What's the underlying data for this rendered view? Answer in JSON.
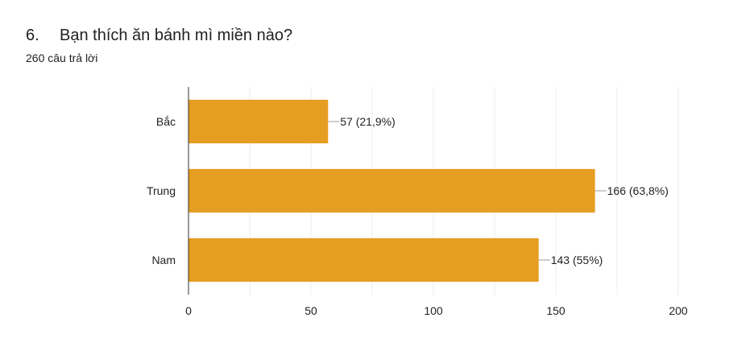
{
  "question": {
    "number": "6.",
    "title": "Bạn thích ăn bánh mì miền nào?",
    "response_count": "260 câu trả lời"
  },
  "colors": {
    "bar": "#e69e22",
    "grid": "#ececec",
    "axis": "#333333",
    "leader": "#9e9e9e",
    "text": "#222222"
  },
  "chart_data": {
    "type": "bar",
    "orientation": "horizontal",
    "categories": [
      "Bắc",
      "Trung",
      "Nam"
    ],
    "values": [
      57,
      166,
      143
    ],
    "data_labels": [
      "57 (21,9%)",
      "166 (63,8%)",
      "143 (55%)"
    ],
    "xlim": [
      0,
      200
    ],
    "xticks": [
      0,
      50,
      100,
      150,
      200
    ],
    "xtick_labels": [
      "0",
      "50",
      "100",
      "150",
      "200"
    ],
    "grid": true,
    "legend": "none"
  }
}
